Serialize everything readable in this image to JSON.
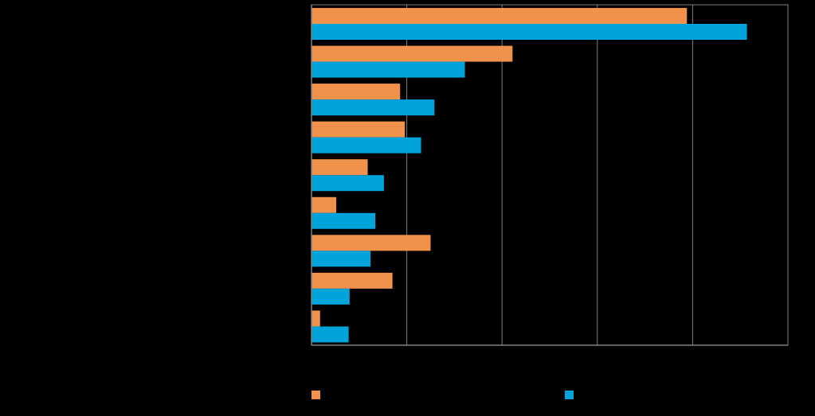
{
  "chart_data": {
    "type": "bar",
    "orientation": "horizontal",
    "title": "",
    "xlabel": "",
    "ylabel": "",
    "xlim": [
      0,
      50
    ],
    "x_gridlines": [
      10,
      20,
      30,
      40
    ],
    "grid": true,
    "legend_position": "bottom",
    "categories": [
      "",
      "",
      "",
      "",
      "",
      "",
      "",
      "",
      ""
    ],
    "series": [
      {
        "color": "#F0924C",
        "values": [
          39.4,
          21.1,
          9.3,
          9.8,
          5.9,
          2.6,
          12.5,
          8.5,
          0.9
        ]
      },
      {
        "color": "#00A3DA",
        "values": [
          45.7,
          16.1,
          12.9,
          11.5,
          7.6,
          6.7,
          6.2,
          4.0,
          3.9
        ]
      }
    ]
  },
  "colors": {
    "background": "#000000",
    "axis": "#808080",
    "gridline": "#808080"
  }
}
